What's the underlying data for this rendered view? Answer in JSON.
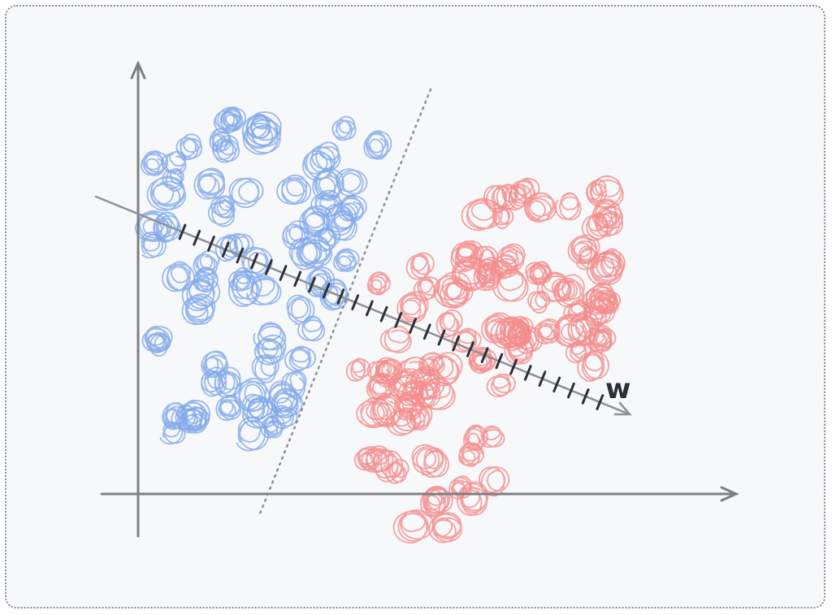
{
  "diagram": {
    "projection_label": "w"
  }
}
